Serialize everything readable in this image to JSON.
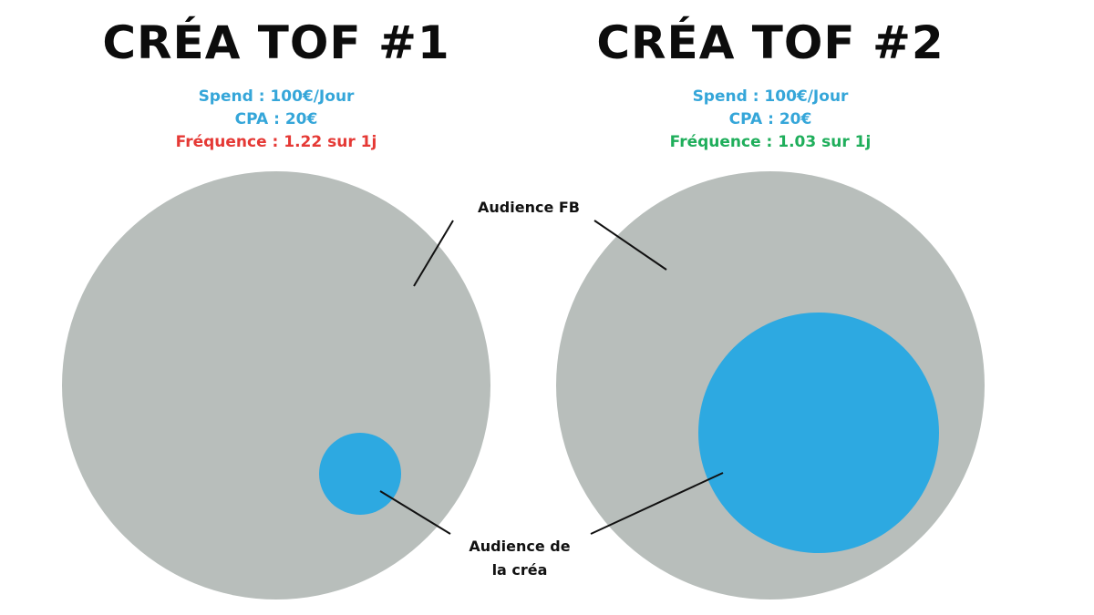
{
  "panels": [
    {
      "title": "CRÉA TOF #1",
      "spend": "Spend : 100€/Jour",
      "cpa": "CPA : 20€",
      "frequence": "Fréquence : 1.22 sur 1j",
      "frequence_color": "#e53935"
    },
    {
      "title": "CRÉA TOF #2",
      "spend": "Spend : 100€/Jour",
      "cpa": "CPA : 20€",
      "frequence": "Fréquence : 1.03 sur 1j",
      "frequence_color": "#1fae5b"
    }
  ],
  "labels": {
    "audience_fb": "Audience FB",
    "audience_crea_line1": "Audience de",
    "audience_crea_line2": "la créa"
  },
  "colors": {
    "audience_fb": "#b8bebb",
    "audience_crea": "#2da9e1",
    "stats_blue": "#35a6d9"
  }
}
